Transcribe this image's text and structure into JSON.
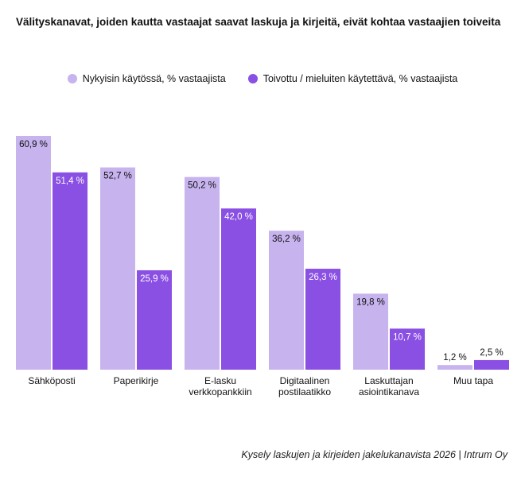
{
  "chart_data": {
    "type": "bar",
    "title": "Välityskanavat, joiden kautta vastaajat saavat laskuja ja kirjeitä, eivät kohtaa vastaajien toiveita",
    "categories": [
      [
        "Sähköposti"
      ],
      [
        "Paperikirje"
      ],
      [
        "E-lasku",
        "verkkopankkiin"
      ],
      [
        "Digitaalinen",
        "postilaatikko"
      ],
      [
        "Laskuttajan",
        "asiointikanava"
      ],
      [
        "Muu tapa"
      ]
    ],
    "series": [
      {
        "name": "Nykyisin käytössä, % vastaajista",
        "color": "#c7b3ee",
        "values": [
          60.9,
          52.7,
          50.2,
          36.2,
          19.8,
          1.2
        ],
        "labels": [
          "60,9 %",
          "52,7 %",
          "50,2 %",
          "36,2 %",
          "19,8 %",
          "1,2 %"
        ]
      },
      {
        "name": "Toivottu / mieluiten käytettävä, % vastaajista",
        "color": "#8a4fe3",
        "values": [
          51.4,
          25.9,
          42.0,
          26.3,
          10.7,
          2.5
        ],
        "labels": [
          "51,4 %",
          "25,9 %",
          "42,0 %",
          "26,3 %",
          "10,7 %",
          "2,5 %"
        ]
      }
    ],
    "ylim": [
      0,
      62
    ],
    "grid": false,
    "legend_position": "top-center",
    "source": "Kysely laskujen ja kirjeiden jakelukanavista 2026 | Intrum Oy"
  }
}
